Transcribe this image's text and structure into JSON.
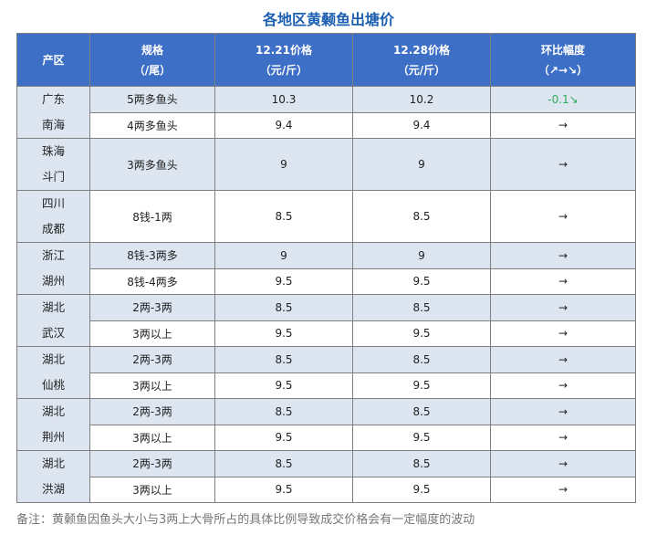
{
  "title": "各地区黄颡鱼出塘价",
  "headers": {
    "region": "产区",
    "spec_line1": "规格",
    "spec_line2": "（/尾）",
    "price1_line1": "12.21价格",
    "price1_line2": "（元/斤）",
    "price2_line1": "12.28价格",
    "price2_line2": "（元/斤）",
    "change_line1": "环比幅度",
    "change_line2": "（↗→↘）"
  },
  "groups": [
    {
      "region_line1": "广东",
      "region_line2": "南海",
      "rows": [
        {
          "spec": "5两多鱼头",
          "p1": "10.3",
          "p2": "10.2",
          "change": "-0.1↘"
        },
        {
          "spec": "4两多鱼头",
          "p1": "9.4",
          "p2": "9.4",
          "change": "→"
        }
      ]
    },
    {
      "region_line1": "珠海",
      "region_line2": "斗门",
      "rows": [
        {
          "spec": "3两多鱼头",
          "p1": "9",
          "p2": "9",
          "change": "→"
        }
      ]
    },
    {
      "region_line1": "四川",
      "region_line2": "成都",
      "rows": [
        {
          "spec": "8钱-1两",
          "p1": "8.5",
          "p2": "8.5",
          "change": "→"
        }
      ]
    },
    {
      "region_line1": "浙江",
      "region_line2": "湖州",
      "rows": [
        {
          "spec": "8钱-3两多",
          "p1": "9",
          "p2": "9",
          "change": "→"
        },
        {
          "spec": "8钱-4两多",
          "p1": "9.5",
          "p2": "9.5",
          "change": "→"
        }
      ]
    },
    {
      "region_line1": "湖北",
      "region_line2": "武汉",
      "rows": [
        {
          "spec": "2两-3两",
          "p1": "8.5",
          "p2": "8.5",
          "change": "→"
        },
        {
          "spec": "3两以上",
          "p1": "9.5",
          "p2": "9.5",
          "change": "→"
        }
      ]
    },
    {
      "region_line1": "湖北",
      "region_line2": "仙桃",
      "rows": [
        {
          "spec": "2两-3两",
          "p1": "8.5",
          "p2": "8.5",
          "change": "→"
        },
        {
          "spec": "3两以上",
          "p1": "9.5",
          "p2": "9.5",
          "change": "→"
        }
      ]
    },
    {
      "region_line1": "湖北",
      "region_line2": "荆州",
      "rows": [
        {
          "spec": "2两-3两",
          "p1": "8.5",
          "p2": "8.5",
          "change": "→"
        },
        {
          "spec": "3两以上",
          "p1": "9.5",
          "p2": "9.5",
          "change": "→"
        }
      ]
    },
    {
      "region_line1": "湖北",
      "region_line2": "洪湖",
      "rows": [
        {
          "spec": "2两-3两",
          "p1": "8.5",
          "p2": "8.5",
          "change": "→"
        },
        {
          "spec": "3两以上",
          "p1": "9.5",
          "p2": "9.5",
          "change": "→"
        }
      ]
    }
  ],
  "note": "备注：黄颡鱼因鱼头大小与3两上大骨所占的具体比例导致成交价格会有一定幅度的波动",
  "colors": {
    "header_bg": "#3d6fc6",
    "row_shade": "#dde5f1",
    "title": "#1d5fb0",
    "down": "#2eab5a"
  }
}
